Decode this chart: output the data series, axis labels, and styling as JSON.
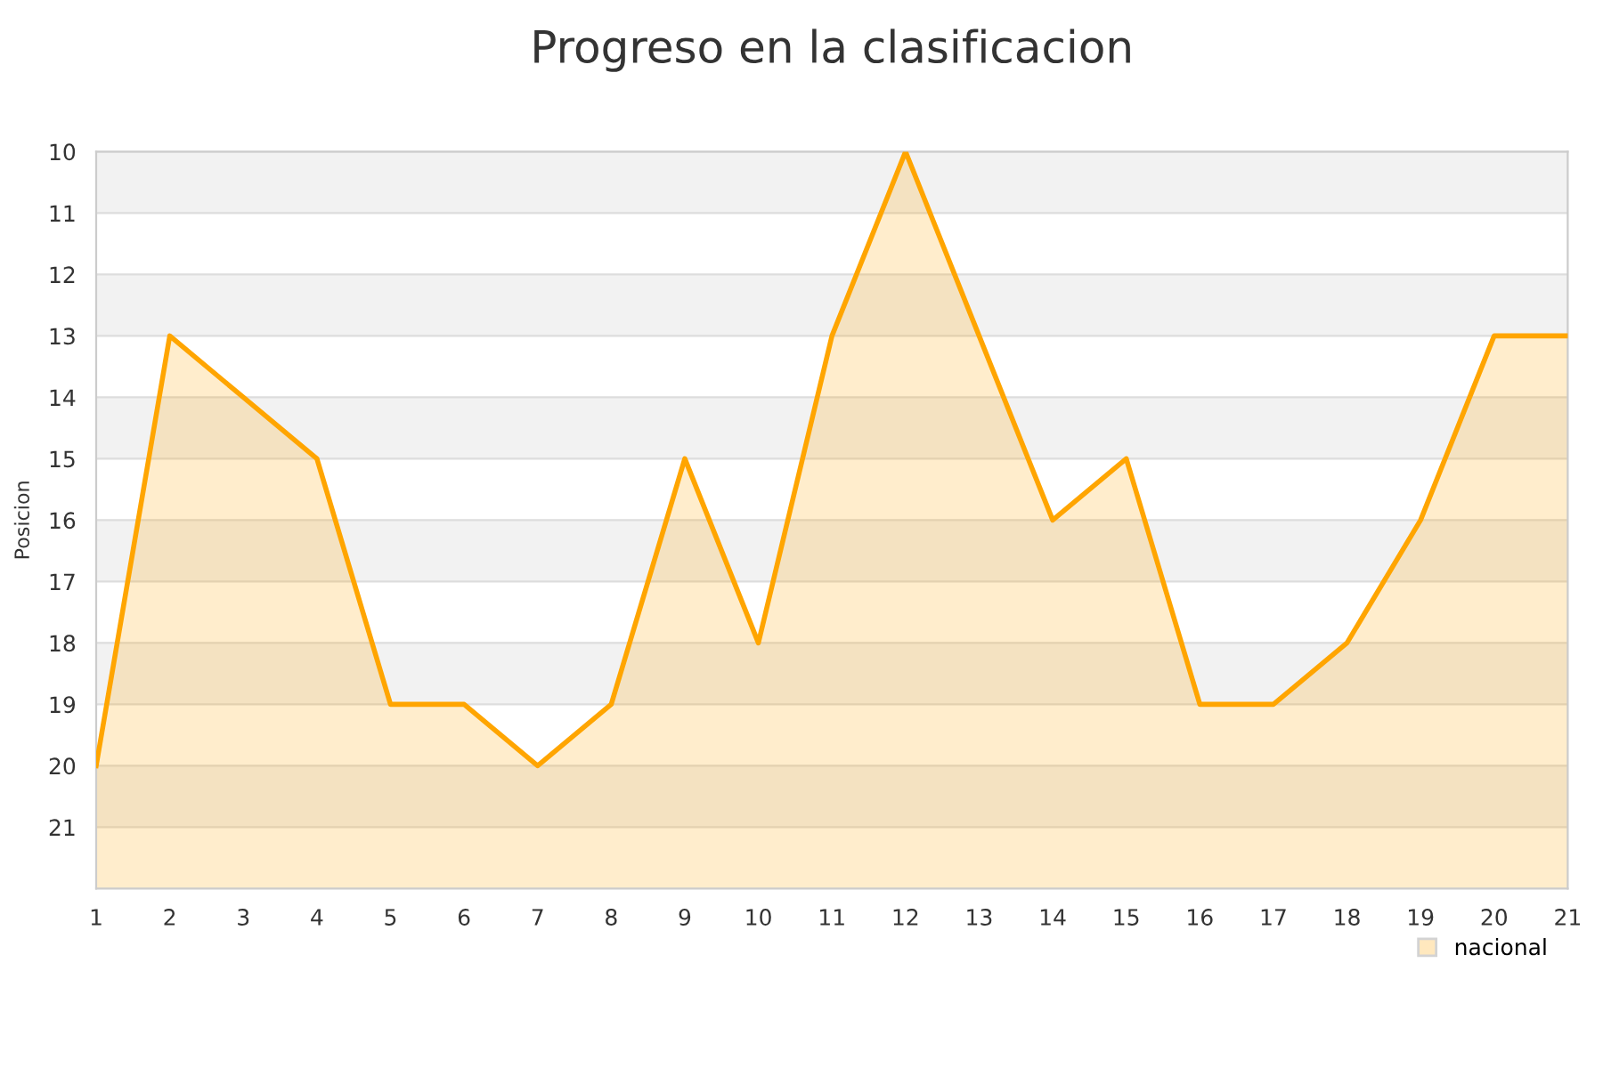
{
  "chart_data": {
    "type": "area",
    "title": "Progreso en la clasificacion",
    "ylabel": "Posicion",
    "x": [
      1,
      2,
      3,
      4,
      5,
      6,
      7,
      8,
      9,
      10,
      11,
      12,
      13,
      14,
      15,
      16,
      17,
      18,
      19,
      20,
      21
    ],
    "series": [
      {
        "name": "nacional",
        "color": "#ffa500",
        "values": [
          20,
          13,
          14,
          15,
          19,
          19,
          20,
          19,
          15,
          18,
          13,
          10,
          13,
          16,
          15,
          19,
          19,
          18,
          16,
          13,
          13
        ]
      }
    ],
    "xlim": [
      1,
      21
    ],
    "xticks": [
      1,
      2,
      3,
      4,
      5,
      6,
      7,
      8,
      9,
      10,
      11,
      12,
      13,
      14,
      15,
      16,
      17,
      18,
      19,
      20,
      21
    ],
    "ylim": [
      22,
      10
    ],
    "yticks": [
      10,
      11,
      12,
      13,
      14,
      15,
      16,
      17,
      18,
      19,
      20,
      21
    ],
    "grid": "y",
    "legend": "bottom right",
    "marker": "none",
    "line_style": "solid"
  }
}
